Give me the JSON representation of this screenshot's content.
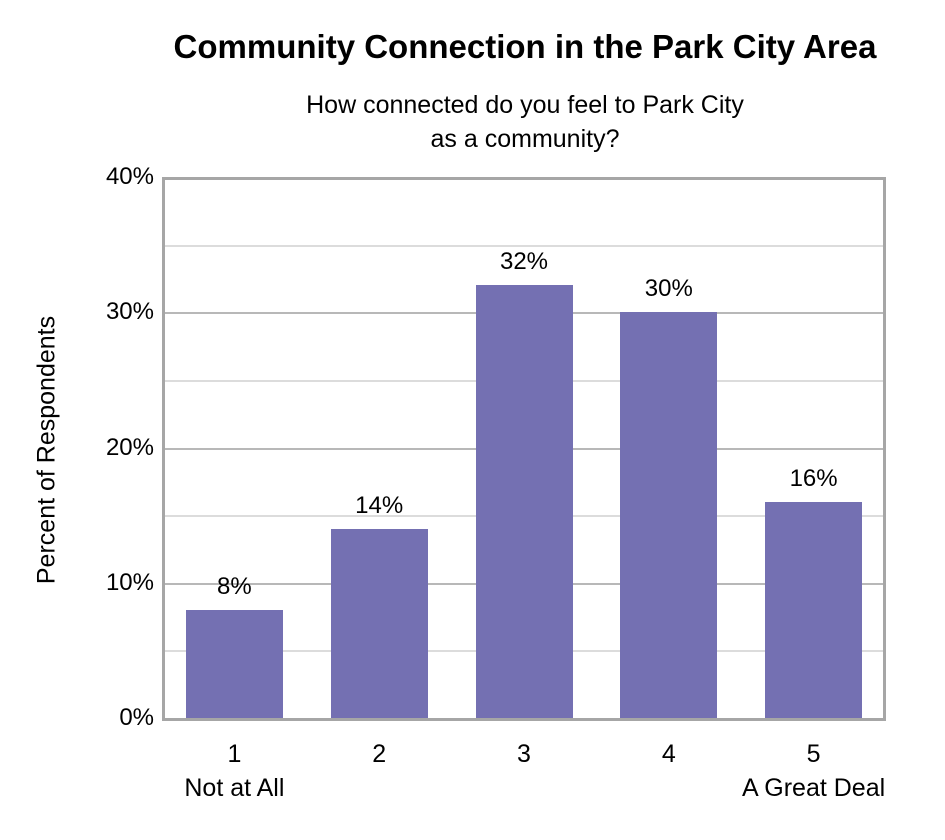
{
  "chart_data": {
    "type": "bar",
    "title": "Community Connection in the Park City Area",
    "subtitle": [
      "How connected do you feel to Park City",
      "as a community?"
    ],
    "xlabel": "",
    "ylabel": "Percent of Respondents",
    "categories": [
      "1",
      "2",
      "3",
      "4",
      "5"
    ],
    "category_sublabels": [
      "Not at All",
      "",
      "",
      "",
      "A Great Deal"
    ],
    "values": [
      8,
      14,
      32,
      30,
      16
    ],
    "data_labels": [
      "8%",
      "14%",
      "32%",
      "30%",
      "16%"
    ],
    "ylim": [
      0,
      40
    ],
    "yticks": [
      "0%",
      "10%",
      "20%",
      "30%",
      "40%"
    ],
    "grid": true,
    "legend": null,
    "bar_color": "#7470b2"
  }
}
